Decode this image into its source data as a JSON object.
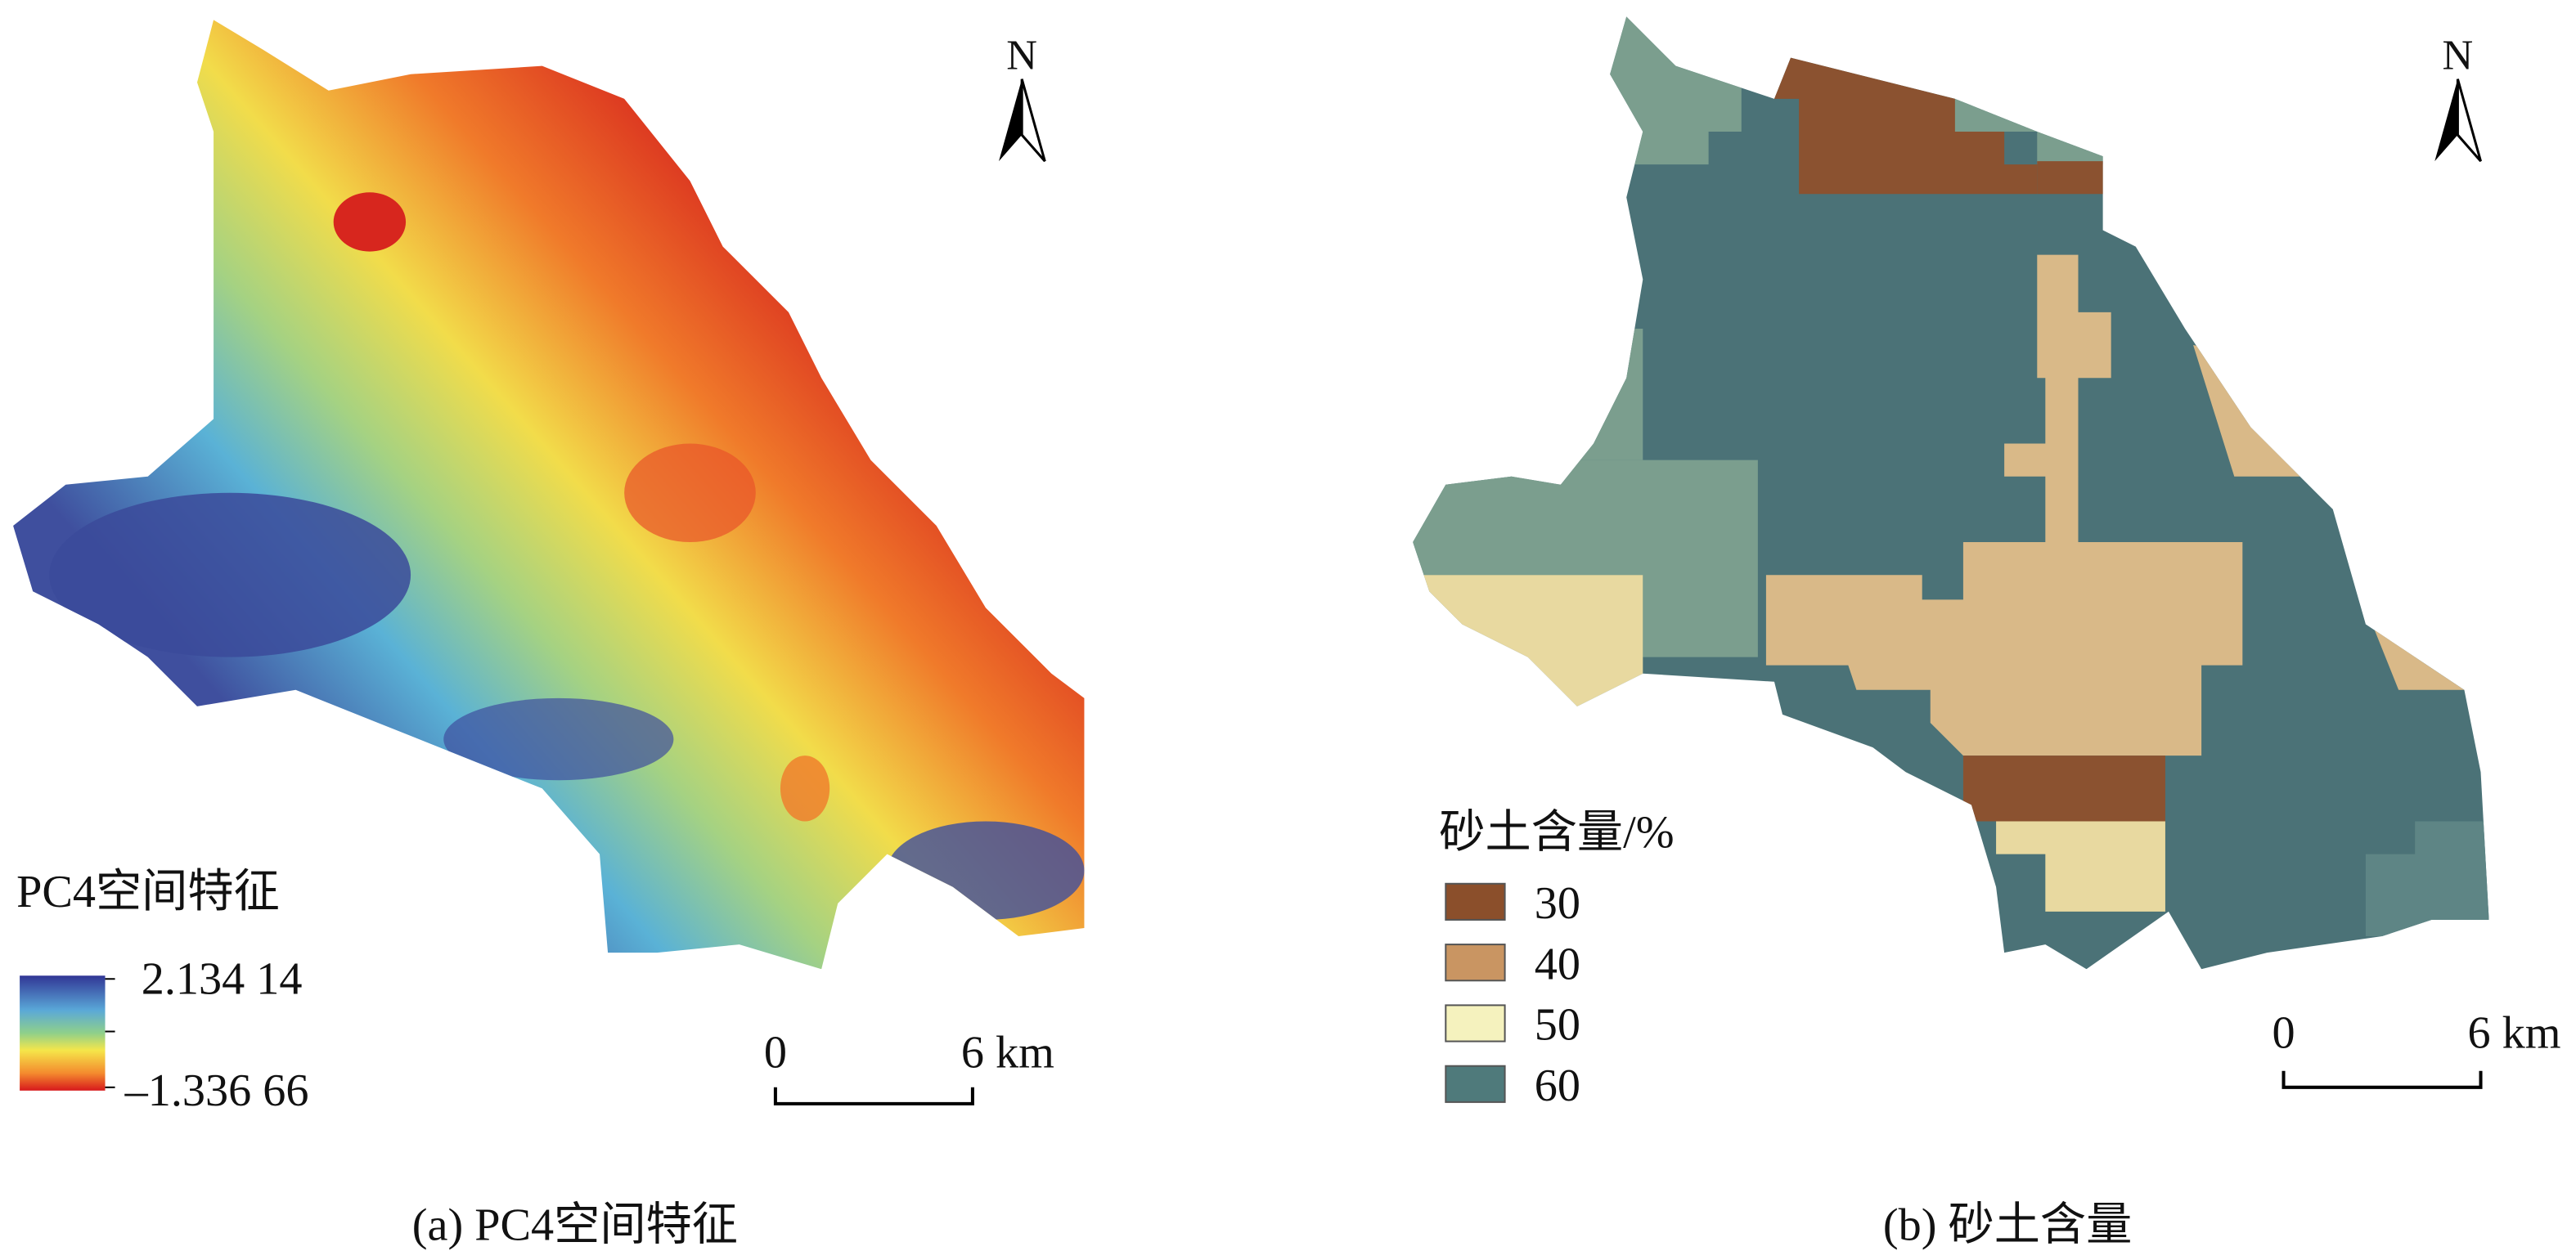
{
  "left_panel": {
    "north": "N",
    "legend_title": "PC4空间特征",
    "legend_high": "2.134 14",
    "legend_low": "–1.336 66",
    "scale_start": "0",
    "scale_end": "6 km",
    "caption": "(a) PC4空间特征"
  },
  "right_panel": {
    "north": "N",
    "legend_title": "砂土含量/%",
    "legend_items": [
      "30",
      "40",
      "50",
      "60"
    ],
    "scale_start": "0",
    "scale_end": "6 km",
    "caption": "(b) 砂土含量"
  }
}
